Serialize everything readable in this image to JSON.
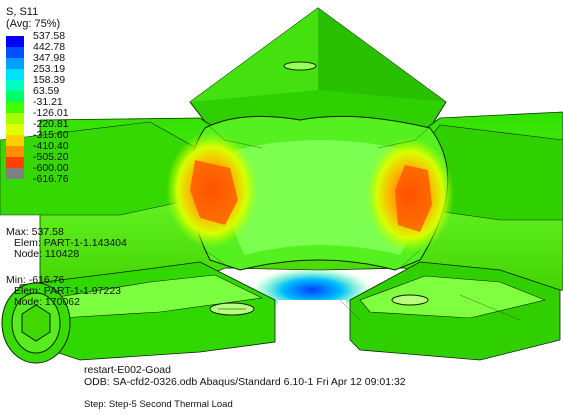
{
  "legend": {
    "title_line1": "S, S11",
    "title_line2": "(Avg: 75%)",
    "labels": [
      "537.58",
      "442.78",
      "347.98",
      "253.19",
      "158.39",
      "63.59",
      "-31.21",
      "-126.01",
      "-220.81",
      "-315.60",
      "-410.40",
      "-505.20",
      "-600.00",
      "-616.76"
    ],
    "colors": [
      "#0000ff",
      "#0050ff",
      "#00a0ff",
      "#00e0ff",
      "#00ffc0",
      "#00ff60",
      "#40ff00",
      "#a0ff00",
      "#e0ff00",
      "#ffd000",
      "#ff9000",
      "#ff4000",
      "#ff0000",
      "#808080"
    ]
  },
  "max_info": {
    "max": "Max: 537.58",
    "elem": "Elem: PART-1-1.143404",
    "node": "Node: 110428"
  },
  "min_info": {
    "min": "Min: -616.76",
    "elem": "Elem: PART-1-1.97223",
    "node": "Node: 170062"
  },
  "footer": {
    "line1": "restart-E002-Goad",
    "line2": "ODB: SA-cfd2-0326.odb    Abaqus/Standard 6.10-1    Fri Apr 12 09:01:32",
    "line3": "Step: Step-5   Second Thermal Load"
  }
}
